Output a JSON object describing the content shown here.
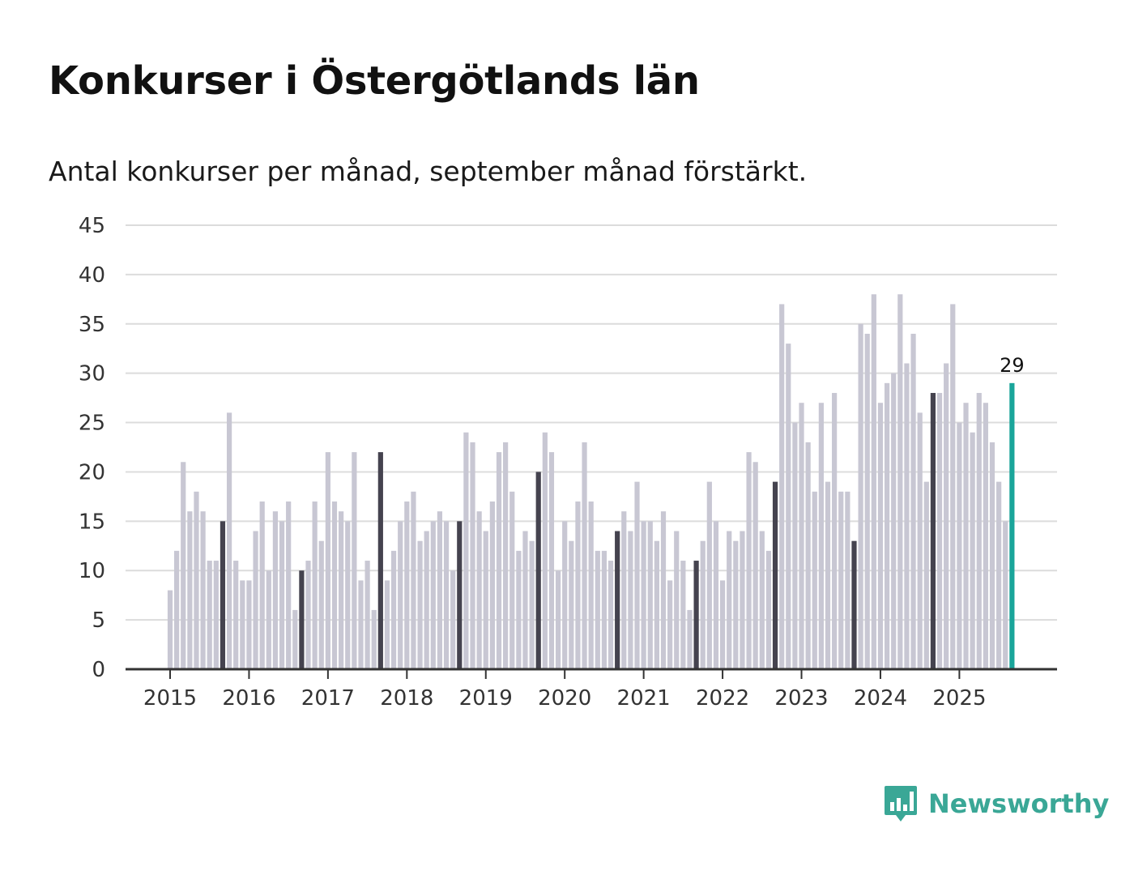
{
  "title": "Konkurser i Östergötlands län",
  "subtitle": "Antal konkurser per månad, september månad förstärkt.",
  "brand": {
    "name": "Newsworthy",
    "icon": "bar-chart-speech-bubble-icon",
    "color": "#3aa796"
  },
  "colors": {
    "normal": "#c8c7d3",
    "september": "#45434f",
    "latest": "#1aa59a",
    "grid": "#dcdcdc",
    "axis": "#333333"
  },
  "chart_data": {
    "type": "bar",
    "title": "Konkurser i Östergötlands län",
    "subtitle": "Antal konkurser per månad, september månad förstärkt.",
    "xlabel": "",
    "ylabel": "",
    "ylim": [
      0,
      45
    ],
    "yticks": [
      "0",
      "5",
      "10",
      "15",
      "20",
      "25",
      "30",
      "35",
      "40",
      "45"
    ],
    "xticks": [
      "2015",
      "2016",
      "2017",
      "2018",
      "2019",
      "2020",
      "2021",
      "2022",
      "2023",
      "2024",
      "2025"
    ],
    "start": "2015-01",
    "grid": true,
    "highlight": "september",
    "latest_label": "29",
    "values": [
      8,
      12,
      21,
      16,
      18,
      16,
      11,
      11,
      15,
      26,
      11,
      9,
      9,
      14,
      17,
      10,
      16,
      15,
      17,
      6,
      10,
      11,
      17,
      13,
      22,
      17,
      16,
      15,
      22,
      9,
      11,
      6,
      22,
      9,
      12,
      15,
      17,
      18,
      13,
      14,
      15,
      16,
      15,
      10,
      15,
      24,
      23,
      16,
      14,
      17,
      22,
      23,
      18,
      12,
      14,
      13,
      20,
      24,
      22,
      10,
      15,
      13,
      17,
      23,
      17,
      12,
      12,
      11,
      14,
      16,
      14,
      19,
      15,
      15,
      13,
      16,
      9,
      14,
      11,
      6,
      11,
      13,
      19,
      15,
      9,
      14,
      13,
      14,
      22,
      21,
      14,
      12,
      19,
      37,
      33,
      25,
      27,
      23,
      18,
      27,
      19,
      28,
      18,
      18,
      13,
      35,
      34,
      38,
      27,
      29,
      30,
      38,
      31,
      34,
      26,
      19,
      28,
      28,
      31,
      37,
      25,
      27,
      24,
      28,
      27,
      23,
      19,
      15,
      29
    ]
  }
}
